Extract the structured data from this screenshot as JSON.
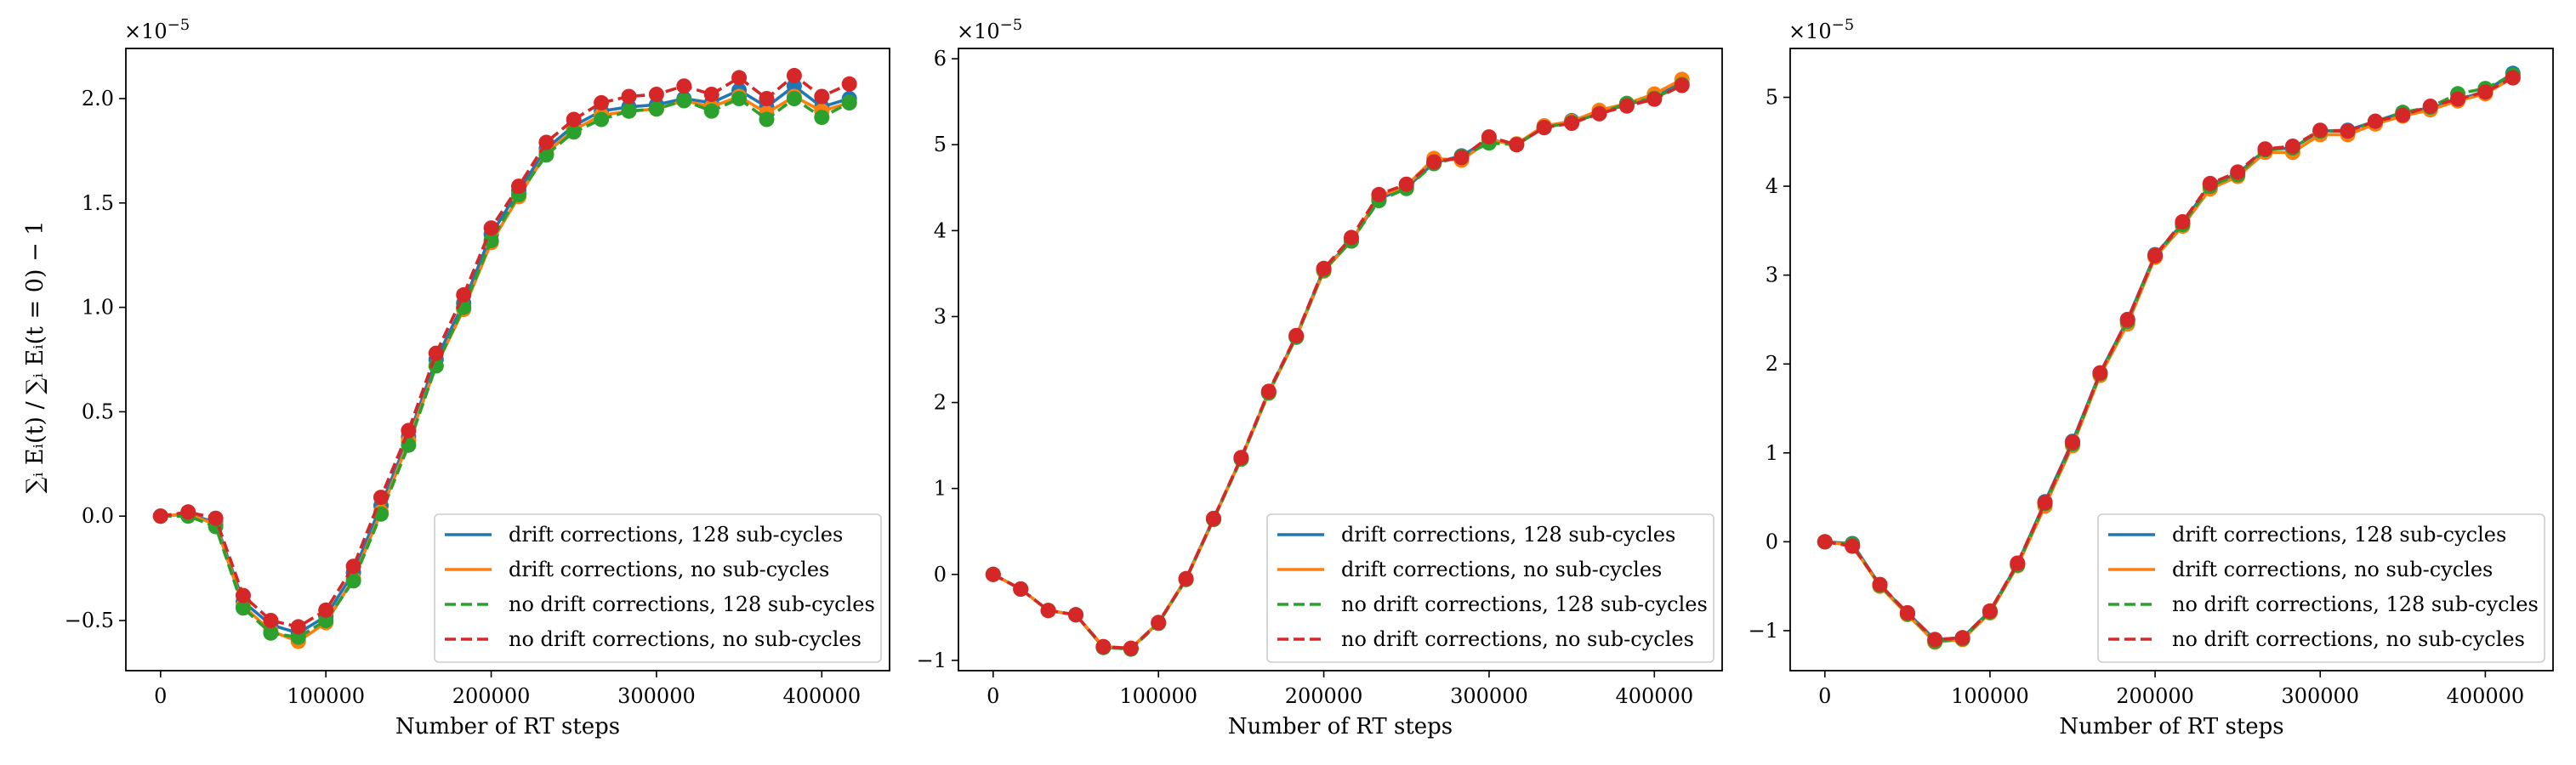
{
  "figure": {
    "ylabel": "∑ᵢ Eᵢ(t) / ∑ᵢ Eᵢ(t = 0) − 1",
    "scale_base": "×10",
    "scale_exponent": "−5"
  },
  "colors": {
    "blue": "#1f77b4",
    "orange": "#ff7f0e",
    "green": "#2ca02c",
    "red": "#d62728"
  },
  "chart_data": [
    {
      "type": "line",
      "xlabel": "Number of RT steps",
      "ylabel": "∑ᵢ Eᵢ(t) / ∑ᵢ Eᵢ(t = 0) − 1",
      "y_scale_note": "×10⁻⁵",
      "xlim": [
        -21000,
        441000
      ],
      "ylim": [
        -0.74,
        2.24
      ],
      "xticks": [
        0,
        100000,
        200000,
        300000,
        400000
      ],
      "xtick_labels": [
        "0",
        "100000",
        "200000",
        "300000",
        "400000"
      ],
      "yticks": [
        -0.5,
        0.0,
        0.5,
        1.0,
        1.5,
        2.0
      ],
      "ytick_labels": [
        "−0.5",
        "0.0",
        "0.5",
        "1.0",
        "1.5",
        "2.0"
      ],
      "grid": false,
      "legend_position": "lower-right",
      "x": [
        0,
        16667,
        33333,
        50000,
        66667,
        83333,
        100000,
        116667,
        133333,
        150000,
        166667,
        183333,
        200000,
        216667,
        233333,
        250000,
        266667,
        283333,
        300000,
        316667,
        333333,
        350000,
        366667,
        383333,
        400000,
        416667
      ],
      "series": [
        {
          "name": "drift corrections, 128 sub-cycles",
          "color": "#1f77b4",
          "dash": "solid",
          "values": [
            0.0,
            0.01,
            -0.03,
            -0.41,
            -0.52,
            -0.56,
            -0.48,
            -0.27,
            0.05,
            0.38,
            0.75,
            1.02,
            1.35,
            1.56,
            1.76,
            1.87,
            1.94,
            1.96,
            1.97,
            2.0,
            1.98,
            2.04,
            1.96,
            2.06,
            1.96,
            2.0
          ]
        },
        {
          "name": "drift corrections, no sub-cycles",
          "color": "#ff7f0e",
          "dash": "solid",
          "values": [
            0.0,
            0.01,
            -0.04,
            -0.43,
            -0.55,
            -0.6,
            -0.51,
            -0.3,
            0.02,
            0.36,
            0.72,
            0.99,
            1.31,
            1.53,
            1.74,
            1.85,
            1.92,
            1.94,
            1.95,
            1.99,
            1.96,
            2.01,
            1.93,
            2.01,
            1.94,
            1.98
          ]
        },
        {
          "name": "no drift corrections, 128 sub-cycles",
          "color": "#2ca02c",
          "dash": "dashed",
          "values": [
            0.0,
            0.0,
            -0.05,
            -0.44,
            -0.56,
            -0.58,
            -0.5,
            -0.31,
            0.01,
            0.34,
            0.72,
            1.0,
            1.32,
            1.54,
            1.73,
            1.84,
            1.9,
            1.94,
            1.95,
            1.99,
            1.94,
            2.0,
            1.9,
            2.0,
            1.91,
            1.98
          ]
        },
        {
          "name": "no drift corrections, no sub-cycles",
          "color": "#d62728",
          "dash": "dashed",
          "values": [
            0.0,
            0.02,
            -0.01,
            -0.38,
            -0.5,
            -0.53,
            -0.45,
            -0.24,
            0.09,
            0.41,
            0.78,
            1.06,
            1.38,
            1.58,
            1.79,
            1.9,
            1.98,
            2.01,
            2.02,
            2.06,
            2.02,
            2.1,
            2.0,
            2.11,
            2.01,
            2.07
          ]
        }
      ]
    },
    {
      "type": "line",
      "xlabel": "Number of RT steps",
      "ylabel": "",
      "y_scale_note": "×10⁻⁵",
      "xlim": [
        -21000,
        441000
      ],
      "ylim": [
        -1.12,
        6.12
      ],
      "xticks": [
        0,
        100000,
        200000,
        300000,
        400000
      ],
      "xtick_labels": [
        "0",
        "100000",
        "200000",
        "300000",
        "400000"
      ],
      "yticks": [
        -1,
        0,
        1,
        2,
        3,
        4,
        5,
        6
      ],
      "ytick_labels": [
        "−1",
        "0",
        "1",
        "2",
        "3",
        "4",
        "5",
        "6"
      ],
      "grid": false,
      "legend_position": "lower-right",
      "x": [
        0,
        16667,
        33333,
        50000,
        66667,
        83333,
        100000,
        116667,
        133333,
        150000,
        166667,
        183333,
        200000,
        216667,
        233333,
        250000,
        266667,
        283333,
        300000,
        316667,
        333333,
        350000,
        366667,
        383333,
        400000,
        416667
      ],
      "series": [
        {
          "name": "drift corrections, 128 sub-cycles",
          "color": "#1f77b4",
          "dash": "solid",
          "values": [
            0.0,
            -0.17,
            -0.42,
            -0.47,
            -0.85,
            -0.86,
            -0.56,
            -0.05,
            0.65,
            1.35,
            2.12,
            2.77,
            3.55,
            3.88,
            4.37,
            4.5,
            4.79,
            4.87,
            5.06,
            5.0,
            5.2,
            5.28,
            5.38,
            5.46,
            5.56,
            5.72
          ]
        },
        {
          "name": "drift corrections, no sub-cycles",
          "color": "#ff7f0e",
          "dash": "solid",
          "values": [
            0.0,
            -0.17,
            -0.42,
            -0.47,
            -0.84,
            -0.86,
            -0.56,
            -0.06,
            0.64,
            1.35,
            2.11,
            2.76,
            3.53,
            3.88,
            4.4,
            4.52,
            4.84,
            4.82,
            5.05,
            5.01,
            5.22,
            5.27,
            5.4,
            5.48,
            5.59,
            5.76
          ]
        },
        {
          "name": "no drift corrections, 128 sub-cycles",
          "color": "#2ca02c",
          "dash": "dashed",
          "values": [
            0.0,
            -0.17,
            -0.42,
            -0.47,
            -0.85,
            -0.87,
            -0.57,
            -0.06,
            0.64,
            1.34,
            2.11,
            2.76,
            3.54,
            3.88,
            4.35,
            4.49,
            4.78,
            4.86,
            5.02,
            5.0,
            5.2,
            5.26,
            5.36,
            5.48,
            5.54,
            5.7
          ]
        },
        {
          "name": "no drift corrections, no sub-cycles",
          "color": "#d62728",
          "dash": "dashed",
          "values": [
            0.0,
            -0.17,
            -0.42,
            -0.47,
            -0.84,
            -0.86,
            -0.56,
            -0.05,
            0.65,
            1.36,
            2.13,
            2.78,
            3.56,
            3.92,
            4.42,
            4.54,
            4.8,
            4.85,
            5.09,
            5.0,
            5.2,
            5.25,
            5.36,
            5.45,
            5.53,
            5.69
          ]
        }
      ]
    },
    {
      "type": "line",
      "xlabel": "Number of RT steps",
      "ylabel": "",
      "y_scale_note": "×10⁻⁵",
      "xlim": [
        -21000,
        441000
      ],
      "ylim": [
        -1.45,
        5.55
      ],
      "xticks": [
        0,
        100000,
        200000,
        300000,
        400000
      ],
      "xtick_labels": [
        "0",
        "100000",
        "200000",
        "300000",
        "400000"
      ],
      "yticks": [
        -1,
        0,
        1,
        2,
        3,
        4,
        5
      ],
      "ytick_labels": [
        "−1",
        "0",
        "1",
        "2",
        "3",
        "4",
        "5"
      ],
      "grid": false,
      "legend_position": "lower-right",
      "x": [
        0,
        16667,
        33333,
        50000,
        66667,
        83333,
        100000,
        116667,
        133333,
        150000,
        166667,
        183333,
        200000,
        216667,
        233333,
        250000,
        266667,
        283333,
        300000,
        316667,
        333333,
        350000,
        366667,
        383333,
        400000,
        416667
      ],
      "series": [
        {
          "name": "drift corrections, 128 sub-cycles",
          "color": "#1f77b4",
          "dash": "solid",
          "values": [
            0.0,
            -0.02,
            -0.49,
            -0.8,
            -1.1,
            -1.08,
            -0.78,
            -0.25,
            0.45,
            1.13,
            1.9,
            2.5,
            3.23,
            3.58,
            4.02,
            4.14,
            4.41,
            4.43,
            4.62,
            4.63,
            4.73,
            4.83,
            4.88,
            4.97,
            5.07,
            5.27
          ]
        },
        {
          "name": "drift corrections, no sub-cycles",
          "color": "#ff7f0e",
          "dash": "solid",
          "values": [
            0.0,
            -0.04,
            -0.5,
            -0.82,
            -1.13,
            -1.1,
            -0.8,
            -0.27,
            0.4,
            1.08,
            1.87,
            2.45,
            3.2,
            3.55,
            3.97,
            4.11,
            4.38,
            4.38,
            4.58,
            4.58,
            4.7,
            4.79,
            4.86,
            4.96,
            5.04,
            5.22
          ]
        },
        {
          "name": "no drift corrections, 128 sub-cycles",
          "color": "#2ca02c",
          "dash": "dashed",
          "values": [
            0.0,
            -0.03,
            -0.49,
            -0.81,
            -1.12,
            -1.09,
            -0.79,
            -0.26,
            0.43,
            1.1,
            1.89,
            2.48,
            3.22,
            3.57,
            4.0,
            4.13,
            4.41,
            4.43,
            4.62,
            4.62,
            4.73,
            4.83,
            4.89,
            5.04,
            5.1,
            5.25
          ]
        },
        {
          "name": "no drift corrections, no sub-cycles",
          "color": "#d62728",
          "dash": "dashed",
          "values": [
            0.0,
            -0.05,
            -0.48,
            -0.8,
            -1.1,
            -1.08,
            -0.78,
            -0.24,
            0.44,
            1.12,
            1.9,
            2.5,
            3.22,
            3.6,
            4.03,
            4.16,
            4.42,
            4.45,
            4.63,
            4.62,
            4.73,
            4.8,
            4.9,
            4.98,
            5.06,
            5.22
          ]
        }
      ]
    }
  ]
}
